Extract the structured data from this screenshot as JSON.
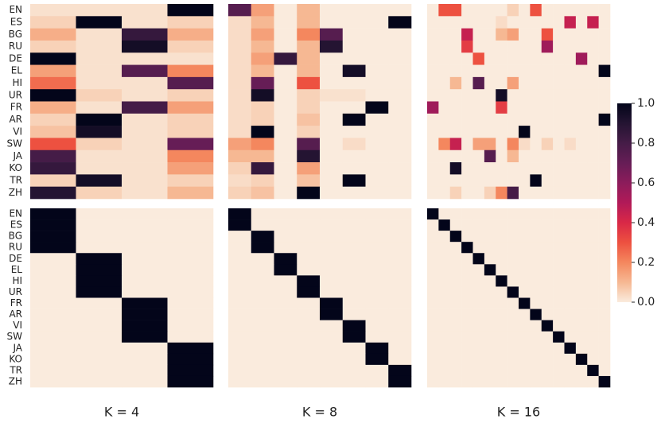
{
  "chart_data": {
    "type": "heatmap",
    "rows": [
      "EN",
      "ES",
      "BG",
      "RU",
      "DE",
      "EL",
      "HI",
      "UR",
      "FR",
      "AR",
      "VI",
      "SW",
      "JA",
      "KO",
      "TR",
      "ZH"
    ],
    "colormap": [
      "#faebdd",
      "#f6b893",
      "#f4875e",
      "#ed5140",
      "#d92847",
      "#b11a58",
      "#8c1c5b",
      "#661d56",
      "#451c47",
      "#241432",
      "#03051a"
    ],
    "zlim": [
      0,
      1
    ],
    "zticks": [
      {
        "value": 0,
        "label": "0.0"
      },
      {
        "value": 0.2,
        "label": "0.2"
      },
      {
        "value": 0.4,
        "label": "0.4"
      },
      {
        "value": 0.6,
        "label": "0.6"
      },
      {
        "value": 0.8,
        "label": "0.8"
      },
      {
        "value": 1,
        "label": "1.0"
      }
    ],
    "panels": [
      {
        "label": "K = 4",
        "top": [
          [
            0.02,
            0.02,
            0.02,
            1
          ],
          [
            0.05,
            1,
            0.02,
            0.05
          ],
          [
            0.12,
            0.02,
            0.85,
            0.12
          ],
          [
            0.05,
            0.02,
            0.95,
            0.05
          ],
          [
            1,
            0.02,
            0.02,
            0.02
          ],
          [
            0.15,
            0.02,
            0.75,
            0.2
          ],
          [
            0.25,
            0.02,
            0.02,
            0.75
          ],
          [
            1,
            0.05,
            0.02,
            0.05
          ],
          [
            0.12,
            0.02,
            0.8,
            0.15
          ],
          [
            0.05,
            1,
            0.02,
            0.05
          ],
          [
            0.08,
            0.95,
            0.02,
            0.05
          ],
          [
            0.3,
            0.05,
            0.02,
            0.7
          ],
          [
            0.8,
            0.02,
            0.02,
            0.2
          ],
          [
            0.85,
            0.02,
            0.02,
            0.15
          ],
          [
            0.05,
            0.95,
            0.02,
            0.05
          ],
          [
            0.9,
            0.05,
            0.02,
            0.1
          ]
        ],
        "bottom": [
          [
            1,
            0,
            0,
            0
          ],
          [
            1,
            0,
            0,
            0
          ],
          [
            1,
            0,
            0,
            0
          ],
          [
            1,
            0,
            0,
            0
          ],
          [
            0,
            1,
            0,
            0
          ],
          [
            0,
            1,
            0,
            0
          ],
          [
            0,
            1,
            0,
            0
          ],
          [
            0,
            1,
            0,
            0
          ],
          [
            0,
            0,
            1,
            0
          ],
          [
            0,
            0,
            1,
            0
          ],
          [
            0,
            0,
            1,
            0
          ],
          [
            0,
            0,
            1,
            0
          ],
          [
            0,
            0,
            0,
            1
          ],
          [
            0,
            0,
            0,
            1
          ],
          [
            0,
            0,
            0,
            1
          ],
          [
            0,
            0,
            0,
            1
          ]
        ]
      },
      {
        "label": "K = 8",
        "top": [
          [
            0.75,
            0.15,
            0,
            0.1,
            0,
            0,
            0,
            0
          ],
          [
            0.03,
            0.1,
            0,
            0.1,
            0,
            0,
            0,
            1
          ],
          [
            0.03,
            0.15,
            0,
            0.2,
            0.75,
            0,
            0,
            0
          ],
          [
            0.03,
            0.1,
            0,
            0.1,
            0.9,
            0,
            0,
            0
          ],
          [
            0.03,
            0.15,
            0.85,
            0.1,
            0,
            0,
            0,
            0
          ],
          [
            0.03,
            0.1,
            0,
            0.1,
            0,
            0.95,
            0,
            0
          ],
          [
            0.03,
            0.7,
            0,
            0.3,
            0,
            0,
            0,
            0
          ],
          [
            0.03,
            0.95,
            0,
            0.05,
            0.02,
            0.02,
            0,
            0
          ],
          [
            0.03,
            0.05,
            0,
            0.05,
            0,
            0,
            1,
            0
          ],
          [
            0.03,
            0.05,
            0,
            0.08,
            0,
            1,
            0,
            0
          ],
          [
            0.03,
            1,
            0,
            0.05,
            0,
            0,
            0,
            0
          ],
          [
            0.15,
            0.2,
            0,
            0.75,
            0,
            0.03,
            0,
            0
          ],
          [
            0.1,
            0.1,
            0,
            0.9,
            0,
            0,
            0,
            0
          ],
          [
            0.05,
            0.85,
            0,
            0.15,
            0,
            0,
            0,
            0
          ],
          [
            0.03,
            0.05,
            0,
            0.08,
            0,
            1,
            0,
            0
          ],
          [
            0.05,
            0.08,
            0,
            1,
            0,
            0,
            0,
            0
          ]
        ],
        "bottom": [
          [
            1,
            0,
            0,
            0,
            0,
            0,
            0,
            0
          ],
          [
            1,
            0,
            0,
            0,
            0,
            0,
            0,
            0
          ],
          [
            0,
            1,
            0,
            0,
            0,
            0,
            0,
            0
          ],
          [
            0,
            1,
            0,
            0,
            0,
            0,
            0,
            0
          ],
          [
            0,
            0,
            1,
            0,
            0,
            0,
            0,
            0
          ],
          [
            0,
            0,
            1,
            0,
            0,
            0,
            0,
            0
          ],
          [
            0,
            0,
            0,
            1,
            0,
            0,
            0,
            0
          ],
          [
            0,
            0,
            0,
            1,
            0,
            0,
            0,
            0
          ],
          [
            0,
            0,
            0,
            0,
            1,
            0,
            0,
            0
          ],
          [
            0,
            0,
            0,
            0,
            1,
            0,
            0,
            0
          ],
          [
            0,
            0,
            0,
            0,
            0,
            1,
            0,
            0
          ],
          [
            0,
            0,
            0,
            0,
            0,
            1,
            0,
            0
          ],
          [
            0,
            0,
            0,
            0,
            0,
            0,
            1,
            0
          ],
          [
            0,
            0,
            0,
            0,
            0,
            0,
            1,
            0
          ],
          [
            0,
            0,
            0,
            0,
            0,
            0,
            0,
            1
          ],
          [
            0,
            0,
            0,
            0,
            0,
            0,
            0,
            1
          ]
        ]
      },
      {
        "label": "K = 16",
        "top": [
          [
            0,
            0.3,
            0.3,
            0,
            0,
            0,
            0,
            0.05,
            0,
            0.3,
            0,
            0,
            0,
            0,
            0,
            0
          ],
          [
            0,
            0,
            0,
            0,
            0,
            0,
            0.03,
            0,
            0,
            0,
            0,
            0,
            0.45,
            0,
            0.45,
            0
          ],
          [
            0,
            0,
            0,
            0.45,
            0,
            0,
            0.1,
            0.15,
            0,
            0,
            0.3,
            0,
            0,
            0,
            0,
            0
          ],
          [
            0,
            0,
            0,
            0.35,
            0,
            0,
            0,
            0,
            0,
            0,
            0.55,
            0,
            0,
            0,
            0,
            0
          ],
          [
            0,
            0,
            0,
            0,
            0.3,
            0,
            0,
            0,
            0,
            0,
            0,
            0,
            0,
            0.55,
            0,
            0
          ],
          [
            0,
            0,
            0,
            0,
            0,
            0,
            0,
            0,
            0,
            0,
            0,
            0,
            0,
            0,
            0,
            1
          ],
          [
            0,
            0,
            0.1,
            0,
            0.75,
            0,
            0,
            0.15,
            0,
            0,
            0,
            0,
            0,
            0,
            0,
            0
          ],
          [
            0,
            0,
            0,
            0,
            0,
            0,
            0.95,
            0,
            0,
            0,
            0,
            0,
            0,
            0,
            0,
            0
          ],
          [
            0.55,
            0,
            0,
            0,
            0,
            0,
            0.35,
            0,
            0,
            0,
            0,
            0,
            0,
            0,
            0,
            0
          ],
          [
            0,
            0,
            0,
            0,
            0,
            0,
            0,
            0,
            0,
            0,
            0,
            0,
            0,
            0,
            0,
            1
          ],
          [
            0,
            0,
            0,
            0,
            0,
            0,
            0,
            0,
            1,
            0,
            0,
            0,
            0,
            0,
            0,
            0
          ],
          [
            0,
            0.2,
            0.45,
            0,
            0.15,
            0.15,
            0,
            0.2,
            0.03,
            0,
            0.05,
            0,
            0.03,
            0,
            0,
            0
          ],
          [
            0,
            0,
            0,
            0,
            0,
            0.75,
            0,
            0.1,
            0,
            0,
            0,
            0,
            0,
            0,
            0,
            0
          ],
          [
            0,
            0,
            0.95,
            0,
            0,
            0,
            0,
            0,
            0,
            0,
            0,
            0,
            0,
            0,
            0,
            0
          ],
          [
            0,
            0,
            0,
            0,
            0,
            0,
            0,
            0,
            0,
            1,
            0,
            0,
            0,
            0,
            0,
            0
          ],
          [
            0,
            0,
            0.05,
            0,
            0,
            0.05,
            0.2,
            0.8,
            0,
            0,
            0,
            0,
            0,
            0,
            0,
            0
          ]
        ],
        "bottom": [
          [
            1,
            0,
            0,
            0,
            0,
            0,
            0,
            0,
            0,
            0,
            0,
            0,
            0,
            0,
            0,
            0
          ],
          [
            0,
            1,
            0,
            0,
            0,
            0,
            0,
            0,
            0,
            0,
            0,
            0,
            0,
            0,
            0,
            0
          ],
          [
            0,
            0,
            1,
            0,
            0,
            0,
            0,
            0,
            0,
            0,
            0,
            0,
            0,
            0,
            0,
            0
          ],
          [
            0,
            0,
            0,
            1,
            0,
            0,
            0,
            0,
            0,
            0,
            0,
            0,
            0,
            0,
            0,
            0
          ],
          [
            0,
            0,
            0,
            0,
            1,
            0,
            0,
            0,
            0,
            0,
            0,
            0,
            0,
            0,
            0,
            0
          ],
          [
            0,
            0,
            0,
            0,
            0,
            1,
            0,
            0,
            0,
            0,
            0,
            0,
            0,
            0,
            0,
            0
          ],
          [
            0,
            0,
            0,
            0,
            0,
            0,
            1,
            0,
            0,
            0,
            0,
            0,
            0,
            0,
            0,
            0
          ],
          [
            0,
            0,
            0,
            0,
            0,
            0,
            0,
            1,
            0,
            0,
            0,
            0,
            0,
            0,
            0,
            0
          ],
          [
            0,
            0,
            0,
            0,
            0,
            0,
            0,
            0,
            1,
            0,
            0,
            0,
            0,
            0,
            0,
            0
          ],
          [
            0,
            0,
            0,
            0,
            0,
            0,
            0,
            0,
            0,
            1,
            0,
            0,
            0,
            0,
            0,
            0
          ],
          [
            0,
            0,
            0,
            0,
            0,
            0,
            0,
            0,
            0,
            0,
            1,
            0,
            0,
            0,
            0,
            0
          ],
          [
            0,
            0,
            0,
            0,
            0,
            0,
            0,
            0,
            0,
            0,
            0,
            1,
            0,
            0,
            0,
            0
          ],
          [
            0,
            0,
            0,
            0,
            0,
            0,
            0,
            0,
            0,
            0,
            0,
            0,
            1,
            0,
            0,
            0
          ],
          [
            0,
            0,
            0,
            0,
            0,
            0,
            0,
            0,
            0,
            0,
            0,
            0,
            0,
            1,
            0,
            0
          ],
          [
            0,
            0,
            0,
            0,
            0,
            0,
            0,
            0,
            0,
            0,
            0,
            0,
            0,
            0,
            1,
            0
          ],
          [
            0,
            0,
            0,
            0,
            0,
            0,
            0,
            0,
            0,
            0,
            0,
            0,
            0,
            0,
            0,
            1
          ]
        ]
      }
    ]
  }
}
